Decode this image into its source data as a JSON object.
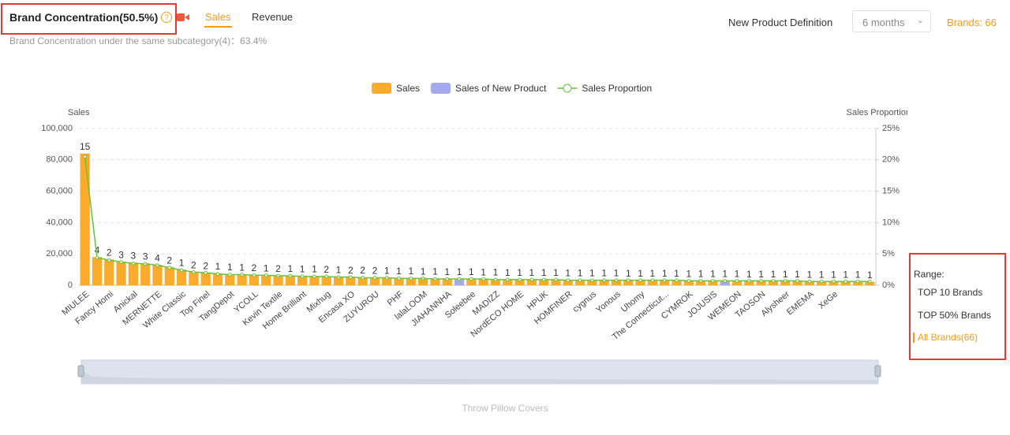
{
  "header": {
    "title": "Brand Concentration(50.5%)",
    "tabs": [
      "Sales",
      "Revenue"
    ],
    "subtitle": "Brand Concentration under the same subcategory(4)：63.4%"
  },
  "controls": {
    "definition_label": "New Product Definition",
    "definition_value": "6 months",
    "brands": "Brands: 66"
  },
  "range": {
    "title": "Range:",
    "options": [
      "TOP 10 Brands",
      "TOP 50% Brands",
      "All Brands(66)"
    ]
  },
  "footer": "Throw Pillow Covers",
  "chart_data": {
    "type": "bar",
    "ylabel": "Sales",
    "y2label": "Sales Proportion",
    "categories": [
      "MIULEE",
      null,
      "Fancy Homi",
      null,
      "Anickal",
      null,
      "MERNETTE",
      null,
      "White Classic",
      null,
      "Top Finel",
      null,
      "TangDepot",
      null,
      "YCOLL",
      null,
      "Kevin Textile",
      null,
      "Home Brilliant",
      null,
      "Mixhug",
      null,
      "Encasa XO",
      null,
      "ZUYUROU",
      null,
      "PHF",
      null,
      "lalaLOOM",
      null,
      "JIAHANNHA",
      null,
      "Soleebee",
      null,
      "MADIZZ",
      null,
      "NordECO HOME",
      null,
      "HPUK",
      null,
      "HOMFINER",
      null,
      "cygnus",
      null,
      "Yonous",
      null,
      "Uhomy",
      null,
      "The Connecticut...",
      null,
      "CYMROK",
      null,
      "JOJUSIS",
      null,
      "WEMEON",
      null,
      "TAOSON",
      null,
      "Alysheer",
      null,
      "EMEMA",
      null,
      "XeGe",
      null,
      null,
      null
    ],
    "series": [
      {
        "name": "Sales",
        "color": "#fbab2b",
        "values": [
          84000,
          18000,
          16500,
          15000,
          14500,
          14000,
          13000,
          11500,
          10000,
          8500,
          8000,
          7500,
          7000,
          6800,
          6600,
          6400,
          6200,
          6000,
          5900,
          5800,
          5600,
          5400,
          5200,
          5000,
          4900,
          4800,
          4600,
          4500,
          4400,
          4300,
          4200,
          4100,
          4000,
          3900,
          3800,
          3700,
          3650,
          3600,
          3550,
          3500,
          3450,
          3400,
          3350,
          3300,
          3250,
          3200,
          3150,
          3100,
          3050,
          3000,
          2950,
          2900,
          2850,
          2800,
          2750,
          2700,
          2650,
          2600,
          2550,
          2500,
          2450,
          2400,
          2350,
          2300,
          2250,
          2200
        ]
      },
      {
        "name": "Sales of New Product",
        "color": "#a3abee",
        "values": [
          0,
          0,
          0,
          0,
          0,
          0,
          0,
          0,
          0,
          0,
          0,
          0,
          0,
          0,
          0,
          0,
          0,
          0,
          0,
          0,
          0,
          0,
          0,
          0,
          0,
          0,
          0,
          0,
          0,
          0,
          0,
          3500,
          0,
          0,
          0,
          0,
          0,
          0,
          0,
          0,
          0,
          0,
          0,
          0,
          0,
          0,
          0,
          0,
          0,
          0,
          0,
          0,
          0,
          2000,
          0,
          0,
          0,
          0,
          0,
          0,
          0,
          0,
          0,
          0,
          0,
          0
        ]
      },
      {
        "name": "Sales Proportion",
        "color": "#67c23a",
        "axis": "y2",
        "values": [
          20.5,
          4.4,
          4.0,
          3.7,
          3.5,
          3.4,
          3.2,
          2.8,
          2.4,
          2.1,
          2.0,
          1.8,
          1.7,
          1.7,
          1.6,
          1.6,
          1.5,
          1.5,
          1.4,
          1.4,
          1.4,
          1.3,
          1.3,
          1.2,
          1.2,
          1.2,
          1.1,
          1.1,
          1.1,
          1.0,
          1.0,
          1.0,
          1.0,
          1.0,
          0.9,
          0.9,
          0.9,
          0.9,
          0.9,
          0.9,
          0.8,
          0.8,
          0.8,
          0.8,
          0.8,
          0.8,
          0.8,
          0.8,
          0.8,
          0.8,
          0.7,
          0.7,
          0.7,
          0.7,
          0.7,
          0.7,
          0.7,
          0.7,
          0.7,
          0.7,
          0.6,
          0.6,
          0.6,
          0.6,
          0.6,
          0.6
        ]
      }
    ],
    "bar_labels": [
      15,
      4,
      2,
      3,
      3,
      3,
      4,
      2,
      1,
      2,
      2,
      1,
      1,
      1,
      2,
      1,
      2,
      1,
      1,
      1,
      2,
      1,
      2,
      2,
      2,
      1,
      1,
      1,
      1,
      1,
      1,
      1,
      1,
      1,
      1,
      1,
      1,
      1,
      1,
      1,
      1,
      1,
      1,
      1,
      1,
      1,
      1,
      1,
      1,
      1,
      1,
      1,
      1,
      1,
      1,
      1,
      1,
      1,
      1,
      1,
      1,
      1,
      1,
      1,
      1,
      1
    ],
    "ylim": [
      0,
      100000
    ],
    "yticks": [
      0,
      {
        "value": 20000,
        "label": "20,000"
      },
      {
        "value": 40000,
        "label": "40,000"
      },
      {
        "value": 60000,
        "label": "60,000"
      },
      {
        "value": 80000,
        "label": "80,000"
      },
      {
        "value": 100000,
        "label": "100,000"
      }
    ],
    "y2lim": [
      0,
      25
    ],
    "y2ticks": [
      {
        "value": 0,
        "label": "0%"
      },
      {
        "value": 5,
        "label": "5%"
      },
      {
        "value": 10,
        "label": "10%"
      },
      {
        "value": 15,
        "label": "15%"
      },
      {
        "value": 20,
        "label": "20%"
      },
      {
        "value": 25,
        "label": "25%"
      }
    ],
    "grid": true,
    "legend": "top"
  }
}
